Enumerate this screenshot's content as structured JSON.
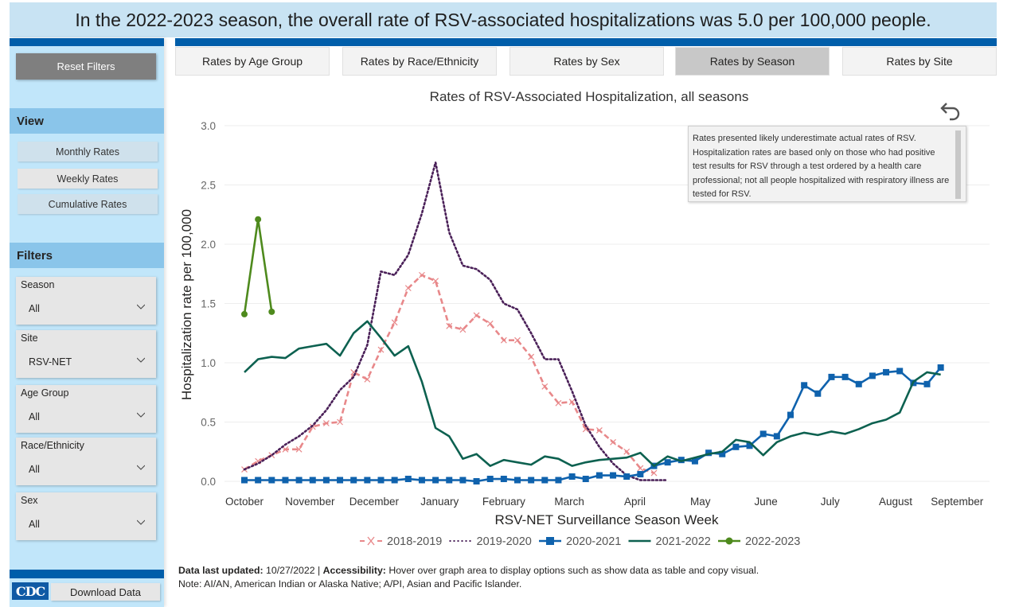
{
  "banner": {
    "text": "In the 2022-2023 season, the overall rate of RSV-associated hospitalizations was 5.0 per 100,000 people."
  },
  "sidebar": {
    "reset_label": "Reset Filters",
    "view_heading": "View",
    "view_buttons": [
      {
        "label": "Monthly Rates"
      },
      {
        "label": "Weekly Rates"
      },
      {
        "label": "Cumulative Rates"
      }
    ],
    "filters_heading": "Filters",
    "filters": [
      {
        "label": "Season",
        "value": "All"
      },
      {
        "label": "Site",
        "value": "RSV-NET"
      },
      {
        "label": "Age Group",
        "value": "All"
      },
      {
        "label": "Race/Ethnicity",
        "value": "All"
      },
      {
        "label": "Sex",
        "value": "All"
      }
    ],
    "logo_text": "CDC",
    "download_label": "Download Data"
  },
  "tabs": [
    {
      "label": "Rates by Age Group",
      "active": false
    },
    {
      "label": "Rates by Race/Ethnicity",
      "active": false
    },
    {
      "label": "Rates by Sex",
      "active": false
    },
    {
      "label": "Rates by Season",
      "active": true
    },
    {
      "label": "Rates by Site",
      "active": false
    }
  ],
  "tooltip": {
    "text": "Rates presented likely underestimate actual rates of RSV. Hospitalization rates are based only on those who had positive test results for RSV through a test ordered by a health care professional; not all people hospitalized with respiratory illness are tested for RSV."
  },
  "footer": {
    "updated_label": "Data last updated:",
    "updated_value": "10/27/2022",
    "sep": "|",
    "accessibility_label": "Accessibility:",
    "accessibility_text": "Hover over graph area to display options such as show data as table and copy visual.",
    "note": "Note: AI/AN, American Indian or Alaska Native; A/PI, Asian and Pacific Islander."
  },
  "colors": {
    "brand_blue": "#005eaa",
    "s2018": "#e8888a",
    "s2019": "#4a2058",
    "s2020": "#0f62ad",
    "s2021": "#0d6150",
    "s2022": "#4e8a1d"
  },
  "chart_data": {
    "type": "line",
    "title": "Rates of RSV-Associated Hospitalization, all seasons",
    "xlabel": "RSV-NET Surveillance Season Week",
    "ylabel": "Hospitalization rate per 100,000",
    "ylim": [
      0,
      3.0
    ],
    "yticks": [
      "0.0",
      "0.5",
      "1.0",
      "1.5",
      "2.0",
      "2.5",
      "3.0"
    ],
    "ytick_values": [
      0,
      0.5,
      1.0,
      1.5,
      2.0,
      2.5,
      3.0
    ],
    "x_month_labels": [
      "October",
      "November",
      "December",
      "January",
      "February",
      "March",
      "April",
      "May",
      "June",
      "July",
      "August",
      "September"
    ],
    "x_month_week_index": [
      0,
      4.8,
      9.5,
      14.3,
      19,
      23.8,
      28.6,
      33.4,
      38.2,
      42.9,
      47.7,
      52.2
    ],
    "week_count": 52,
    "grid": true,
    "legend_position": "bottom",
    "series": [
      {
        "name": "2018-2019",
        "style": "dashed-x",
        "color_key": "s2018",
        "values": [
          0.1,
          0.17,
          0.22,
          0.27,
          0.27,
          0.46,
          0.49,
          0.5,
          0.92,
          0.86,
          1.11,
          1.34,
          1.63,
          1.74,
          1.69,
          1.31,
          1.28,
          1.4,
          1.33,
          1.19,
          1.19,
          1.05,
          0.8,
          0.66,
          0.67,
          0.44,
          0.43,
          0.33,
          0.25,
          0.11,
          0.07
        ]
      },
      {
        "name": "2019-2020",
        "style": "dotted",
        "color_key": "s2019",
        "values": [
          0.1,
          0.15,
          0.22,
          0.31,
          0.38,
          0.47,
          0.6,
          0.77,
          0.88,
          1.15,
          1.77,
          1.74,
          1.91,
          2.26,
          2.69,
          2.1,
          1.82,
          1.79,
          1.7,
          1.5,
          1.45,
          1.25,
          1.03,
          1.03,
          0.76,
          0.47,
          0.29,
          0.15,
          0.05,
          0.01,
          0.01,
          0.01
        ]
      },
      {
        "name": "2020-2021",
        "style": "solid-square",
        "color_key": "s2020",
        "values": [
          0.01,
          0.01,
          0.01,
          0.01,
          0.01,
          0.01,
          0.01,
          0.01,
          0.01,
          0.01,
          0.01,
          0.01,
          0.02,
          0.01,
          0.01,
          0.01,
          0.01,
          0.0,
          0.02,
          0.02,
          0.01,
          0.01,
          0.01,
          0.01,
          0.04,
          0.02,
          0.05,
          0.05,
          0.04,
          0.06,
          0.13,
          0.16,
          0.18,
          0.17,
          0.24,
          0.23,
          0.29,
          0.3,
          0.4,
          0.38,
          0.56,
          0.81,
          0.74,
          0.88,
          0.88,
          0.82,
          0.89,
          0.92,
          0.93,
          0.83,
          0.82,
          0.96
        ]
      },
      {
        "name": "2021-2022",
        "style": "solid",
        "color_key": "s2021",
        "values": [
          0.92,
          1.03,
          1.05,
          1.04,
          1.12,
          1.14,
          1.16,
          1.06,
          1.25,
          1.35,
          1.21,
          1.06,
          1.14,
          0.84,
          0.45,
          0.38,
          0.19,
          0.23,
          0.13,
          0.18,
          0.16,
          0.14,
          0.21,
          0.19,
          0.13,
          0.16,
          0.18,
          0.19,
          0.2,
          0.24,
          0.13,
          0.21,
          0.17,
          0.2,
          0.23,
          0.25,
          0.35,
          0.33,
          0.22,
          0.33,
          0.38,
          0.41,
          0.39,
          0.42,
          0.4,
          0.44,
          0.49,
          0.52,
          0.58,
          0.84,
          0.92,
          0.9
        ]
      },
      {
        "name": "2022-2023",
        "style": "solid-dot",
        "color_key": "s2022",
        "values": [
          1.41,
          2.21,
          1.43
        ]
      }
    ]
  }
}
